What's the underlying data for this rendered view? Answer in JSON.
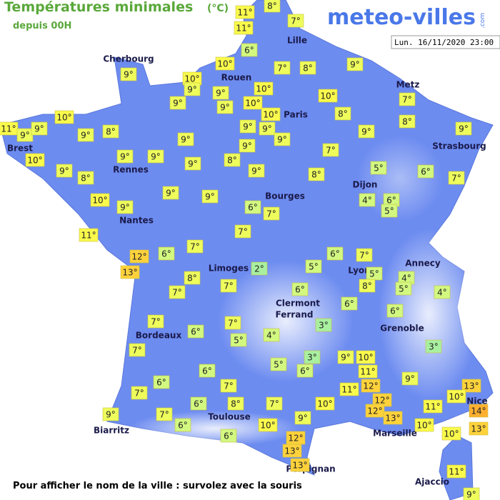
{
  "header": {
    "title": "Températures minimales",
    "unit": "(°C)",
    "subtitle": "depuis 00H",
    "logo": "meteo-villes",
    "logo_suffix": ".com",
    "date": "Lun. 16/11/2020 23:00"
  },
  "footer": "Pour afficher le nom de la ville : survolez avec la souris",
  "cities": [
    "Cherbourg",
    "Rouen",
    "Lille",
    "Paris",
    "Metz",
    "Brest",
    "Rennes",
    "Strasbourg",
    "Dijon",
    "Bourges",
    "Nantes",
    "Annecy",
    "Lyon",
    "Limoges",
    "Clermont",
    "Ferrand",
    "Grenoble",
    "Bordeaux",
    "Toulouse",
    "Biarritz",
    "Marseille",
    "Nice",
    "Perpignan",
    "Ajaccio"
  ],
  "stations": [
    "11°",
    "8°",
    "11°",
    "7°",
    "6°",
    "10°",
    "7°",
    "8°",
    "9°",
    "9°",
    "10°",
    "9°",
    "9°",
    "10°",
    "10°",
    "7°",
    "9°",
    "9°",
    "10°",
    "10°",
    "8°",
    "8°",
    "10°",
    "11°",
    "9°",
    "9°",
    "9°",
    "8°",
    "9°",
    "9°",
    "9°",
    "9°",
    "9°",
    "9°",
    "10°",
    "9°",
    "9°",
    "9°",
    "8°",
    "9°",
    "7°",
    "9°",
    "8°",
    "9°",
    "8°",
    "5°",
    "6°",
    "7°",
    "10°",
    "9°",
    "9°",
    "9°",
    "4°",
    "6°",
    "5°",
    "6°",
    "7°",
    "7°",
    "11°",
    "6°",
    "7°",
    "12°",
    "13°",
    "6°",
    "7°",
    "2°",
    "5°",
    "5°",
    "4°",
    "5°",
    "4°",
    "8°",
    "7°",
    "7°",
    "6°",
    "8°",
    "6°",
    "6°",
    "7°",
    "7°",
    "3°",
    "4°",
    "6°",
    "5°",
    "7°",
    "3°",
    "9°",
    "10°",
    "3°",
    "5°",
    "6°",
    "6°",
    "11°",
    "9°",
    "13°",
    "6°",
    "7°",
    "11°",
    "12°",
    "10°",
    "7°",
    "12°",
    "12°",
    "13°",
    "11°",
    "14°",
    "6°",
    "8°",
    "7°",
    "10°",
    "9°",
    "7°",
    "9°",
    "6°",
    "10°",
    "10°",
    "13°",
    "10°",
    "6°",
    "12°",
    "13°",
    "13°",
    "11°",
    "9°"
  ]
}
